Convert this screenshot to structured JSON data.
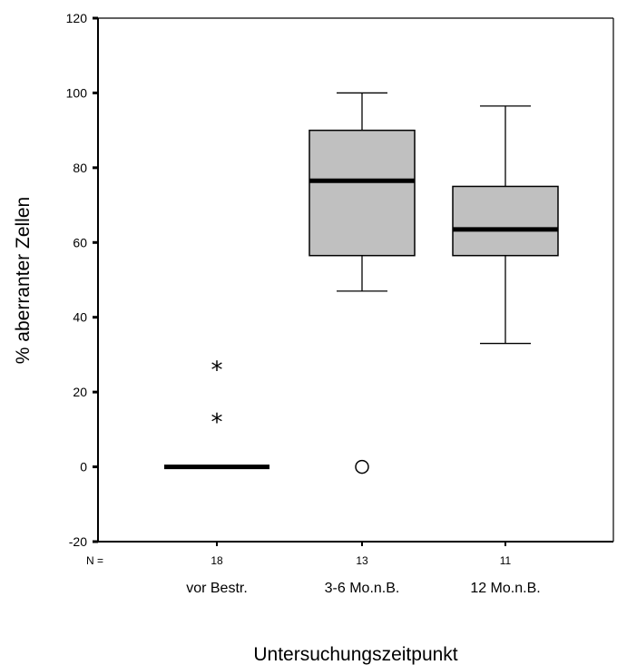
{
  "chart_data": {
    "type": "boxplot",
    "title": "",
    "xlabel": "Untersuchungszeitpunkt",
    "ylabel": "% aberranter Zellen",
    "ylim": [
      -20,
      120
    ],
    "y_ticks": [
      -20,
      0,
      20,
      40,
      60,
      80,
      100,
      120
    ],
    "grid": false,
    "box_fill": "#c0c0c0",
    "n_prefix": "N =",
    "categories": [
      "vor Bestr.",
      "3-6 Mo.n.B.",
      "12 Mo.n.B."
    ],
    "n_values": [
      "18",
      "13",
      "11"
    ],
    "boxes": [
      {
        "category": "vor Bestr.",
        "whisker_low": 0,
        "q1": 0,
        "median": 0,
        "q3": 0,
        "whisker_high": 0,
        "outliers": [],
        "extremes": [
          13,
          27
        ]
      },
      {
        "category": "3-6 Mo.n.B.",
        "whisker_low": 47,
        "q1": 56.5,
        "median": 76.5,
        "q3": 90,
        "whisker_high": 100,
        "outliers": [
          0
        ],
        "extremes": []
      },
      {
        "category": "12 Mo.n.B.",
        "whisker_low": 33,
        "q1": 56.5,
        "median": 63.5,
        "q3": 75,
        "whisker_high": 96.5,
        "outliers": [],
        "extremes": []
      }
    ]
  }
}
